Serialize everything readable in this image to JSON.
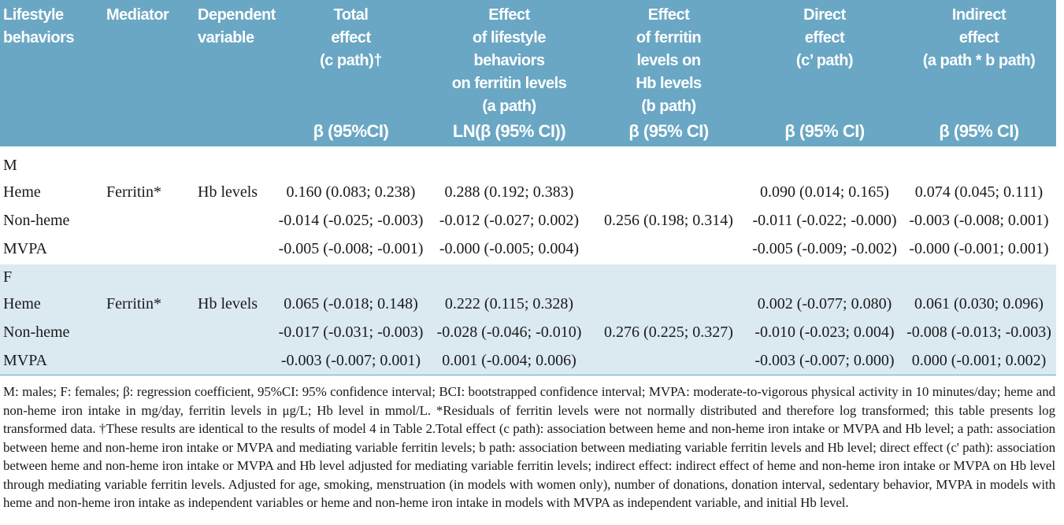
{
  "header": {
    "columns": [
      {
        "title": "Lifestyle\nbehaviors",
        "unit": ""
      },
      {
        "title": "Mediator",
        "unit": ""
      },
      {
        "title": "Dependent\nvariable",
        "unit": ""
      },
      {
        "title": "Total\neffect\n(c path)†",
        "unit": "β (95%CI)"
      },
      {
        "title": "Effect\nof lifestyle\nbehaviors\non ferritin levels\n(a path)",
        "unit": "LN(β (95% CI))"
      },
      {
        "title": "Effect\nof ferritin\nlevels on\nHb levels\n(b path)",
        "unit": "β (95% CI)"
      },
      {
        "title": "Direct\neffect\n(c’ path)",
        "unit": "β (95% CI)"
      },
      {
        "title": "Indirect\neffect\n(a path * b path)",
        "unit": "β (95% CI)"
      }
    ]
  },
  "groups": [
    {
      "label": "M",
      "rows": [
        {
          "behavior": "Heme",
          "mediator": "Ferritin*",
          "dependent": "Hb levels",
          "total": "0.160 (0.083; 0.238)",
          "a_path": "0.288 (0.192; 0.383)",
          "b_path": "",
          "direct": "0.090 (0.014; 0.165)",
          "indirect": "0.074 (0.045; 0.111)"
        },
        {
          "behavior": "Non-heme",
          "mediator": "",
          "dependent": "",
          "total": "-0.014 (-0.025; -0.003)",
          "a_path": "-0.012 (-0.027; 0.002)",
          "b_path": "0.256 (0.198; 0.314)",
          "direct": "-0.011 (-0.022; -0.000)",
          "indirect": "-0.003 (-0.008; 0.001)"
        },
        {
          "behavior": "MVPA",
          "mediator": "",
          "dependent": "",
          "total": "-0.005 (-0.008; -0.001)",
          "a_path": "-0.000 (-0.005; 0.004)",
          "b_path": "",
          "direct": "-0.005 (-0.009; -0.002)",
          "indirect": "-0.000 (-0.001; 0.001)"
        }
      ]
    },
    {
      "label": "F",
      "rows": [
        {
          "behavior": "Heme",
          "mediator": "Ferritin*",
          "dependent": "Hb levels",
          "total": "0.065 (-0.018; 0.148)",
          "a_path": "0.222 (0.115; 0.328)",
          "b_path": "",
          "direct": "0.002 (-0.077; 0.080)",
          "indirect": "0.061 (0.030; 0.096)"
        },
        {
          "behavior": "Non-heme",
          "mediator": "",
          "dependent": "",
          "total": "-0.017 (-0.031; -0.003)",
          "a_path": "-0.028 (-0.046; -0.010)",
          "b_path": "0.276 (0.225; 0.327)",
          "direct": "-0.010 (-0.023; 0.004)",
          "indirect": "-0.008 (-0.013; -0.003)"
        },
        {
          "behavior": "MVPA",
          "mediator": "",
          "dependent": "",
          "total": "-0.003 (-0.007; 0.001)",
          "a_path": "0.001 (-0.004; 0.006)",
          "b_path": "",
          "direct": "-0.003 (-0.007; 0.000)",
          "indirect": "0.000 (-0.001; 0.002)"
        }
      ]
    }
  ],
  "footnote": "M: males; F: females; β: regression coefficient, 95%CI: 95% confidence interval; BCI: bootstrapped confidence interval; MVPA: moderate-to-vigorous physical activity in 10 minutes/day; heme and non-heme iron intake in mg/day, ferritin levels in μg/L; Hb level in mmol/L. *Residuals of ferritin levels were not normally distributed and therefore log transformed; this table presents log transformed data. †These results are identical to the results of model 4 in Table 2.Total effect (c path): association between heme and non-heme iron intake or MVPA and Hb level; a path: association between heme and non-heme iron intake or MVPA and mediating variable ferritin levels; b path: association between mediating variable ferritin levels and Hb level; direct effect (c' path): association between heme and non-heme iron intake or MVPA and Hb level adjusted for mediating variable ferritin levels; indirect effect: indirect effect of heme and non-heme iron intake or MVPA on Hb level through mediating variable ferritin levels. Adjusted for age, smoking, menstruation (in models with women only), number of donations, donation interval, sedentary behavior, MVPA in models with heme and non-heme iron intake as independent variables or heme and non-heme iron intake in models with MVPA as independent variable, and initial Hb level.",
  "colors": {
    "header_bg": "#6aa7c4",
    "female_band_bg": "#dbe9f1",
    "header_text": "#ffffff"
  }
}
